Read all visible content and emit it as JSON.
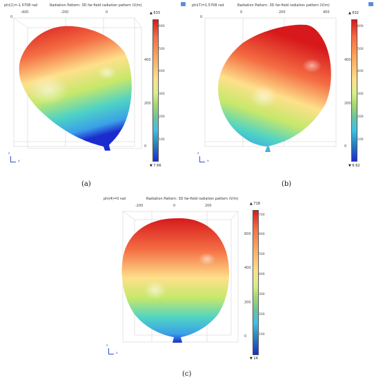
{
  "colormap_colors": [
    "#d7191c",
    "#fdae61",
    "#fee08b",
    "#a6d96a",
    "#3fc1e6",
    "#1b2ccf"
  ],
  "panels": [
    {
      "id": "a",
      "caption": "(a)",
      "param_label": "phi(1)=-1.5708 rad",
      "plot_title": "Radiation Pattern: 3D far-field radiation pattern (V/m)",
      "x_ticks": [
        "-400",
        "-200",
        "0"
      ],
      "x_edge": "0",
      "z_ticks": [
        "400",
        "200",
        "0"
      ],
      "colorbar": {
        "max": "▲ 633",
        "min": "▼ 7.66",
        "ticks": [
          "600",
          "500",
          "400",
          "300",
          "200",
          "100"
        ]
      },
      "triad": {
        "z": "z",
        "x": "x"
      },
      "icon": "camera-icon"
    },
    {
      "id": "b",
      "caption": "(b)",
      "param_label": "phi(7)=1.5708 rad",
      "plot_title": "Radiation Pattern: 3D far-field radiation pattern (V/m)",
      "x_ticks": [
        "0",
        "200",
        "400"
      ],
      "x_edge": "0",
      "z_ticks": [
        "400",
        "200",
        "0"
      ],
      "colorbar": {
        "max": "▲ 632",
        "min": "▼ 6.62",
        "ticks": [
          "600",
          "500",
          "400",
          "300",
          "200",
          "100"
        ]
      },
      "triad": {
        "z": "z",
        "x": "x"
      },
      "icon": "camera-icon"
    },
    {
      "id": "c",
      "caption": "(c)",
      "param_label": "phi(4)=0 rad",
      "plot_title": "Radiation Pattern: 3D far-field radiation pattern (V/m)",
      "x_ticks": [
        "-200",
        "0",
        "200"
      ],
      "x_edge": "",
      "z_ticks": [
        "600",
        "400",
        "200",
        "0"
      ],
      "colorbar": {
        "max": "▲ 718",
        "min": "▼ 14",
        "ticks": [
          "700",
          "600",
          "500",
          "400",
          "300",
          "200",
          "100"
        ]
      },
      "triad": {
        "z": "z",
        "x": "x"
      },
      "icon": ""
    }
  ]
}
